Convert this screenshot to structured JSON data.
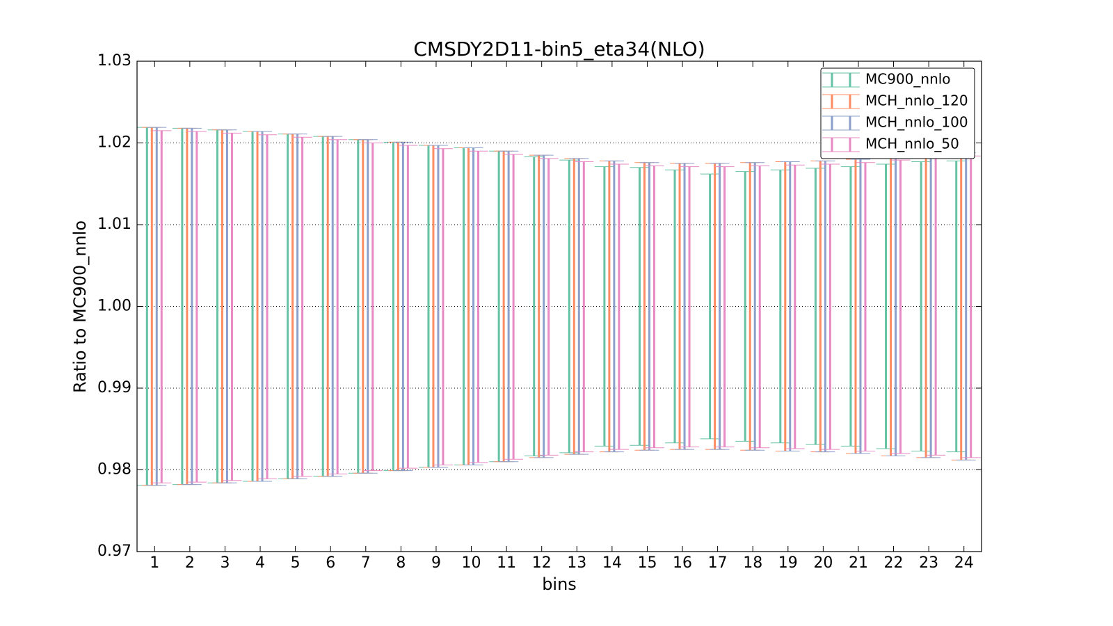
{
  "chart_data": {
    "type": "errorbar",
    "title": "CMSDY2D11-bin5_eta34(NLO)",
    "x_label": "bins",
    "y_label": "Ratio to MC900_nnlo",
    "x": [
      1,
      2,
      3,
      4,
      5,
      6,
      7,
      8,
      9,
      10,
      11,
      12,
      13,
      14,
      15,
      16,
      17,
      18,
      19,
      20,
      21,
      22,
      23,
      24
    ],
    "xlim": [
      0.5,
      24.5
    ],
    "xticks": [
      1,
      2,
      3,
      4,
      5,
      6,
      7,
      8,
      9,
      10,
      11,
      12,
      13,
      14,
      15,
      16,
      17,
      18,
      19,
      20,
      21,
      22,
      23,
      24
    ],
    "ylim": [
      0.97,
      1.03
    ],
    "yticks": [
      0.97,
      0.98,
      0.99,
      {
        "value": 1,
        "label": "1.00"
      },
      1.01,
      1.02,
      1.03
    ],
    "grid": true,
    "legend": "upper right",
    "series": [
      {
        "name": "MC900_nnlo",
        "color": "#66c2a5",
        "low": [
          0.9781,
          0.9782,
          0.9784,
          0.9786,
          0.9789,
          0.9792,
          0.9796,
          0.9799,
          0.9803,
          0.9806,
          0.981,
          0.9817,
          0.9821,
          0.9829,
          0.983,
          0.9833,
          0.9838,
          0.9835,
          0.9833,
          0.9831,
          0.9829,
          0.9826,
          0.9823,
          0.9822
        ],
        "high": [
          1.0219,
          1.0218,
          1.0216,
          1.0214,
          1.0211,
          1.0208,
          1.0204,
          1.0201,
          1.0197,
          1.0194,
          1.019,
          1.0183,
          1.0179,
          1.0171,
          1.017,
          1.0167,
          1.0162,
          1.0165,
          1.0167,
          1.0169,
          1.0171,
          1.0174,
          1.0177,
          1.0178
        ]
      },
      {
        "name": "MCH_nnlo_120",
        "color": "#fc8d62",
        "low": [
          0.9781,
          0.9782,
          0.9784,
          0.9786,
          0.9789,
          0.9792,
          0.9796,
          0.9799,
          0.9803,
          0.9806,
          0.981,
          0.9815,
          0.9819,
          0.9822,
          0.9824,
          0.9825,
          0.9825,
          0.9824,
          0.9823,
          0.9822,
          0.982,
          0.9817,
          0.9815,
          0.9812
        ],
        "high": [
          1.0219,
          1.0218,
          1.0216,
          1.0214,
          1.0211,
          1.0208,
          1.0204,
          1.0201,
          1.0197,
          1.0194,
          1.019,
          1.0185,
          1.0181,
          1.0178,
          1.0176,
          1.0175,
          1.0175,
          1.0176,
          1.0177,
          1.0178,
          1.018,
          1.0183,
          1.0185,
          1.0188
        ]
      },
      {
        "name": "MCH_nnlo_100",
        "color": "#8da0cb",
        "low": [
          0.9781,
          0.9782,
          0.9784,
          0.9786,
          0.9789,
          0.9792,
          0.9796,
          0.9799,
          0.9803,
          0.9806,
          0.981,
          0.9815,
          0.9819,
          0.9822,
          0.9824,
          0.9825,
          0.9825,
          0.9824,
          0.9823,
          0.9822,
          0.982,
          0.9817,
          0.9815,
          0.9812
        ],
        "high": [
          1.0219,
          1.0218,
          1.0216,
          1.0214,
          1.0211,
          1.0208,
          1.0204,
          1.0201,
          1.0197,
          1.0194,
          1.019,
          1.0185,
          1.0181,
          1.0178,
          1.0176,
          1.0175,
          1.0175,
          1.0176,
          1.0177,
          1.0178,
          1.018,
          1.0183,
          1.0185,
          1.0188
        ]
      },
      {
        "name": "MCH_nnlo_50",
        "color": "#e78ac3",
        "low": [
          0.9784,
          0.9785,
          0.9787,
          0.9789,
          0.9792,
          0.9795,
          0.9799,
          0.9802,
          0.9806,
          0.9809,
          0.9813,
          0.9818,
          0.9822,
          0.9825,
          0.9827,
          0.9828,
          0.9828,
          0.9827,
          0.9826,
          0.9825,
          0.9823,
          0.982,
          0.9818,
          0.9815
        ],
        "high": [
          1.0215,
          1.0214,
          1.0212,
          1.021,
          1.0207,
          1.0204,
          1.02,
          1.0197,
          1.0193,
          1.019,
          1.0186,
          1.0181,
          1.0177,
          1.0174,
          1.0172,
          1.0171,
          1.0171,
          1.0172,
          1.0173,
          1.0174,
          1.0176,
          1.0179,
          1.0181,
          1.0184
        ]
      }
    ]
  }
}
